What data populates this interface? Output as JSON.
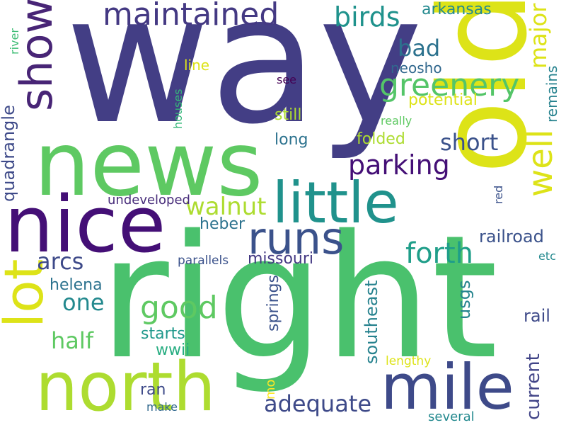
{
  "words": [
    {
      "text": "way",
      "color": "#433e85",
      "orientation": "horizontal"
    },
    {
      "text": "right",
      "color": "#4ac16d",
      "orientation": "horizontal"
    },
    {
      "text": "news",
      "color": "#5ec962",
      "orientation": "horizontal"
    },
    {
      "text": "old",
      "color": "#dde318",
      "orientation": "vertical"
    },
    {
      "text": "nice",
      "color": "#440f76",
      "orientation": "horizontal"
    },
    {
      "text": "north",
      "color": "#addc30",
      "orientation": "horizontal"
    },
    {
      "text": "mile",
      "color": "#3e4a89",
      "orientation": "horizontal"
    },
    {
      "text": "little",
      "color": "#20928c",
      "orientation": "horizontal"
    },
    {
      "text": "runs",
      "color": "#3b528b",
      "orientation": "horizontal"
    },
    {
      "text": "lot",
      "color": "#dde318",
      "orientation": "vertical"
    },
    {
      "text": "show",
      "color": "#482576",
      "orientation": "vertical"
    },
    {
      "text": "maintained",
      "color": "#443983",
      "orientation": "horizontal"
    },
    {
      "text": "well",
      "color": "#dde318",
      "orientation": "vertical"
    },
    {
      "text": "good",
      "color": "#5ec962",
      "orientation": "horizontal"
    },
    {
      "text": "greenery",
      "color": "#54c568",
      "orientation": "horizontal"
    },
    {
      "text": "forth",
      "color": "#1f9e89",
      "orientation": "horizontal"
    },
    {
      "text": "birds",
      "color": "#1f928c",
      "orientation": "horizontal"
    },
    {
      "text": "parking",
      "color": "#440f76",
      "orientation": "horizontal"
    },
    {
      "text": "walnut",
      "color": "#addc30",
      "orientation": "horizontal"
    },
    {
      "text": "adequate",
      "color": "#3e4a89",
      "orientation": "horizontal"
    },
    {
      "text": "short",
      "color": "#3b528b",
      "orientation": "horizontal"
    },
    {
      "text": "bad",
      "color": "#2c728e",
      "orientation": "horizontal"
    },
    {
      "text": "major",
      "color": "#dde318",
      "orientation": "vertical"
    },
    {
      "text": "arcs",
      "color": "#3e4a89",
      "orientation": "horizontal"
    },
    {
      "text": "one",
      "color": "#23898e",
      "orientation": "horizontal"
    },
    {
      "text": "half",
      "color": "#5ec962",
      "orientation": "horizontal"
    },
    {
      "text": "arkansas",
      "color": "#23898e",
      "orientation": "horizontal"
    },
    {
      "text": "railroad",
      "color": "#3b528b",
      "orientation": "horizontal"
    },
    {
      "text": "rail",
      "color": "#3e4a89",
      "orientation": "horizontal"
    },
    {
      "text": "current",
      "color": "#414487",
      "orientation": "vertical"
    },
    {
      "text": "quadrangle",
      "color": "#3e4a89",
      "orientation": "vertical"
    },
    {
      "text": "missouri",
      "color": "#443983",
      "orientation": "horizontal"
    },
    {
      "text": "springs",
      "color": "#3b528b",
      "orientation": "vertical"
    },
    {
      "text": "southeast",
      "color": "#26828e",
      "orientation": "vertical"
    },
    {
      "text": "usgs",
      "color": "#25848e",
      "orientation": "vertical"
    },
    {
      "text": "heber",
      "color": "#2c728e",
      "orientation": "horizontal"
    },
    {
      "text": "helena",
      "color": "#2c728e",
      "orientation": "horizontal"
    },
    {
      "text": "starts",
      "color": "#1f988b",
      "orientation": "horizontal"
    },
    {
      "text": "wwii",
      "color": "#27ad81",
      "orientation": "horizontal"
    },
    {
      "text": "potential",
      "color": "#dde318",
      "orientation": "horizontal"
    },
    {
      "text": "still",
      "color": "#addc30",
      "orientation": "horizontal"
    },
    {
      "text": "long",
      "color": "#2c728e",
      "orientation": "horizontal"
    },
    {
      "text": "folded",
      "color": "#addc30",
      "orientation": "horizontal"
    },
    {
      "text": "neosho",
      "color": "#31688e",
      "orientation": "horizontal"
    },
    {
      "text": "line",
      "color": "#dde318",
      "orientation": "horizontal"
    },
    {
      "text": "remains",
      "color": "#26828e",
      "orientation": "vertical"
    },
    {
      "text": "undeveloped",
      "color": "#472c7a",
      "orientation": "horizontal"
    },
    {
      "text": "parallels",
      "color": "#3b528b",
      "orientation": "horizontal"
    },
    {
      "text": "ran",
      "color": "#3e4a89",
      "orientation": "horizontal"
    },
    {
      "text": "mo",
      "color": "#fde725",
      "orientation": "vertical"
    },
    {
      "text": "lengthy",
      "color": "#dde318",
      "orientation": "horizontal"
    },
    {
      "text": "make",
      "color": "#31688e",
      "orientation": "horizontal"
    },
    {
      "text": "several",
      "color": "#23898e",
      "orientation": "horizontal"
    },
    {
      "text": "see",
      "color": "#440154",
      "orientation": "horizontal"
    },
    {
      "text": "really",
      "color": "#5ec962",
      "orientation": "horizontal"
    },
    {
      "text": "houses",
      "color": "#35b779",
      "orientation": "vertical"
    },
    {
      "text": "river",
      "color": "#3dbc74",
      "orientation": "vertical"
    },
    {
      "text": "red",
      "color": "#3b528b",
      "orientation": "vertical"
    },
    {
      "text": "etc",
      "color": "#23898e",
      "orientation": "horizontal"
    }
  ]
}
